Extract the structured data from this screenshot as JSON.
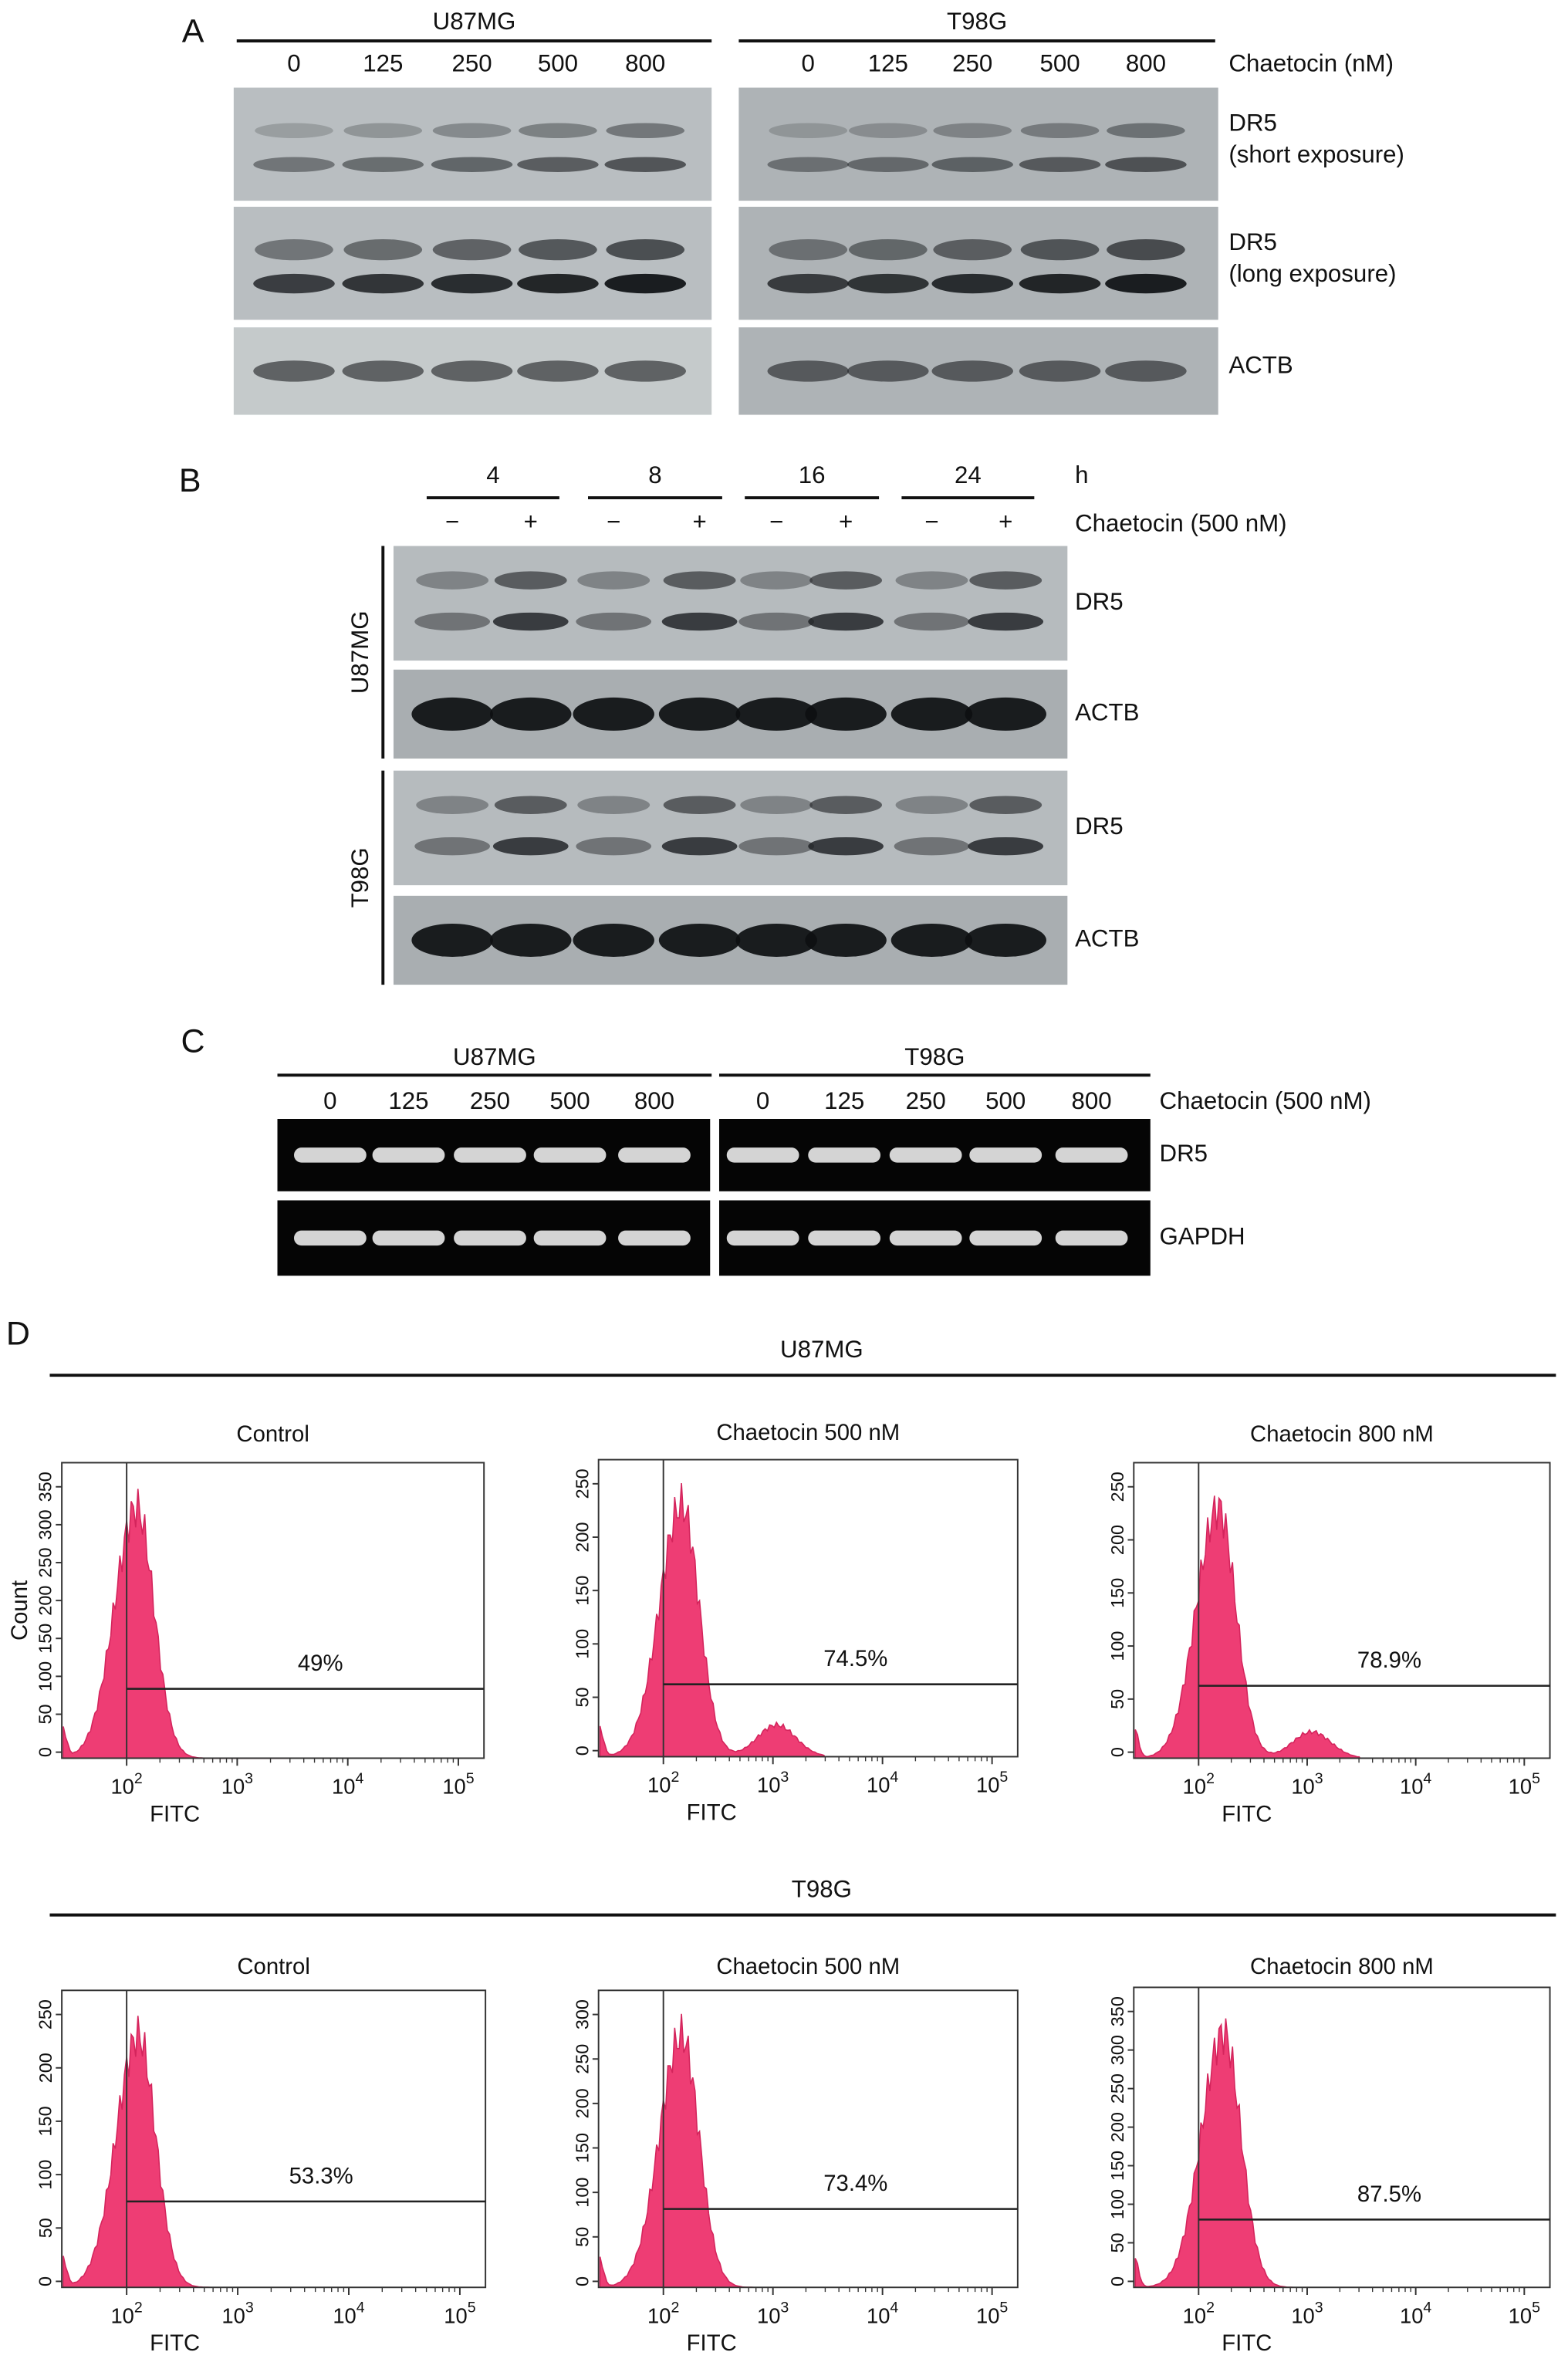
{
  "A": {
    "label": "A",
    "treatment": "Chaetocin (nM)",
    "groups": [
      {
        "name": "U87MG",
        "doses": [
          "0",
          "125",
          "250",
          "500",
          "800"
        ]
      },
      {
        "name": "T98G",
        "doses": [
          "0",
          "125",
          "250",
          "500",
          "800"
        ]
      }
    ],
    "rows": [
      [
        "DR5",
        "(short exposure)"
      ],
      [
        "DR5",
        "(long exposure)"
      ],
      [
        "ACTB"
      ]
    ]
  },
  "B": {
    "label": "B",
    "time_unit": "h",
    "treatment": "Chaetocin (500 nM)",
    "times": [
      "4",
      "8",
      "16",
      "24"
    ],
    "signs": [
      [
        "−",
        "+"
      ],
      [
        "−",
        "+"
      ],
      [
        "−",
        "+"
      ],
      [
        "−",
        "+"
      ]
    ],
    "cell_lines": [
      {
        "name": "U87MG",
        "rows": [
          "DR5",
          "ACTB"
        ]
      },
      {
        "name": "T98G",
        "rows": [
          "DR5",
          "ACTB"
        ]
      }
    ]
  },
  "C": {
    "label": "C",
    "treatment": "Chaetocin (500 nM)",
    "groups": [
      {
        "name": "U87MG",
        "doses": [
          "0",
          "125",
          "250",
          "500",
          "800"
        ]
      },
      {
        "name": "T98G",
        "doses": [
          "0",
          "125",
          "250",
          "500",
          "800"
        ]
      }
    ],
    "rows": [
      "DR5",
      "GAPDH"
    ]
  },
  "D": {
    "label": "D",
    "y_axis": "Count",
    "x_axis": "FITC",
    "xticks": [
      [
        "10",
        "2"
      ],
      [
        "10",
        "3"
      ],
      [
        "10",
        "4"
      ],
      [
        "10",
        "5"
      ]
    ],
    "rows": [
      {
        "cell_line": "U87MG",
        "plots": [
          {
            "title": "Control",
            "gate": "49%",
            "yticks": [
              "0",
              "50",
              "100",
              "150",
              "200",
              "250",
              "300",
              "350"
            ]
          },
          {
            "title": "Chaetocin 500 nM",
            "gate": "74.5%",
            "yticks": [
              "0",
              "50",
              "100",
              "150",
              "200",
              "250"
            ]
          },
          {
            "title": "Chaetocin 800 nM",
            "gate": "78.9%",
            "yticks": [
              "0",
              "50",
              "100",
              "150",
              "200",
              "250"
            ]
          }
        ]
      },
      {
        "cell_line": "T98G",
        "plots": [
          {
            "title": "Control",
            "gate": "53.3%",
            "yticks": [
              "0",
              "50",
              "100",
              "150",
              "200",
              "250"
            ]
          },
          {
            "title": "Chaetocin 500 nM",
            "gate": "73.4%",
            "yticks": [
              "0",
              "50",
              "100",
              "150",
              "200",
              "250",
              "300"
            ]
          },
          {
            "title": "Chaetocin 800 nM",
            "gate": "87.5%",
            "yticks": [
              "0",
              "50",
              "100",
              "150",
              "200",
              "250",
              "300",
              "350"
            ]
          }
        ]
      }
    ]
  }
}
